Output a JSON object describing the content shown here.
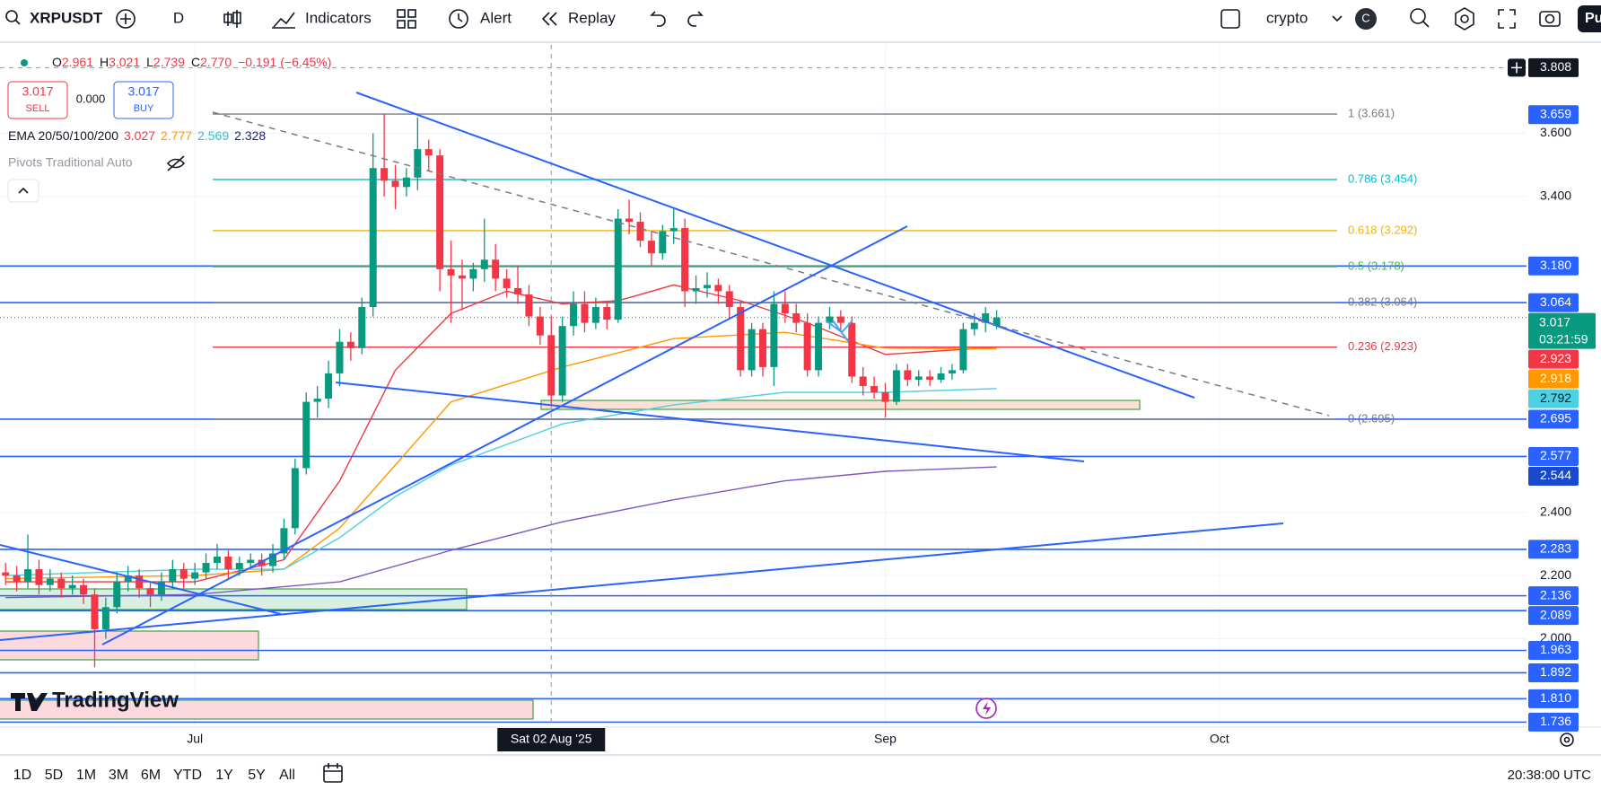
{
  "toolbar": {
    "symbol": "XRPUSDT",
    "interval": "D",
    "items": [
      "Indicators",
      "Alert",
      "Replay"
    ],
    "layout": "crypto",
    "avatar": "C",
    "account": "Pu"
  },
  "legend": {
    "ohlc": [
      {
        "key": "O",
        "value": "2.961"
      },
      {
        "key": "H",
        "value": "3.021"
      },
      {
        "key": "L",
        "value": "2.739"
      },
      {
        "key": "C",
        "value": "2.770"
      }
    ],
    "change": "−0.191 (−6.45%)",
    "sell_price": "3.017",
    "sell": "SELL",
    "spread": "0.000",
    "buy_price": "3.017",
    "buy": "BUY",
    "ema_title": "EMA 20/50/100/200",
    "ema_values": [
      {
        "text": "3.027",
        "color": "#f23645"
      },
      {
        "text": "2.777",
        "color": "#ff9800"
      },
      {
        "text": "2.569",
        "color": "#26c6da"
      },
      {
        "text": "2.328",
        "color": "#1a237e"
      }
    ],
    "pivots": "Pivots Traditional Auto"
  },
  "chart_data": {
    "type": "candlestick",
    "up_color": "#089981",
    "down_color": "#f23645",
    "ohlc": [
      [
        2.21,
        2.24,
        2.17,
        2.2
      ],
      [
        2.2,
        2.23,
        2.15,
        2.18
      ],
      [
        2.18,
        2.33,
        2.16,
        2.22
      ],
      [
        2.22,
        2.25,
        2.14,
        2.17
      ],
      [
        2.17,
        2.22,
        2.15,
        2.19
      ],
      [
        2.19,
        2.21,
        2.13,
        2.16
      ],
      [
        2.16,
        2.2,
        2.14,
        2.17
      ],
      [
        2.17,
        2.19,
        2.11,
        2.14
      ],
      [
        2.14,
        2.16,
        1.91,
        2.03
      ],
      [
        2.03,
        2.13,
        2.0,
        2.1
      ],
      [
        2.1,
        2.21,
        2.08,
        2.18
      ],
      [
        2.18,
        2.23,
        2.15,
        2.2
      ],
      [
        2.2,
        2.22,
        2.13,
        2.16
      ],
      [
        2.16,
        2.18,
        2.1,
        2.14
      ],
      [
        2.14,
        2.21,
        2.12,
        2.18
      ],
      [
        2.18,
        2.25,
        2.16,
        2.22
      ],
      [
        2.22,
        2.24,
        2.16,
        2.19
      ],
      [
        2.19,
        2.24,
        2.17,
        2.21
      ],
      [
        2.21,
        2.27,
        2.19,
        2.24
      ],
      [
        2.24,
        2.3,
        2.22,
        2.26
      ],
      [
        2.26,
        2.28,
        2.19,
        2.22
      ],
      [
        2.22,
        2.26,
        2.2,
        2.24
      ],
      [
        2.24,
        2.27,
        2.22,
        2.25
      ],
      [
        2.25,
        2.27,
        2.2,
        2.23
      ],
      [
        2.23,
        2.3,
        2.21,
        2.27
      ],
      [
        2.27,
        2.38,
        2.25,
        2.35
      ],
      [
        2.35,
        2.57,
        2.33,
        2.54
      ],
      [
        2.54,
        2.78,
        2.52,
        2.75
      ],
      [
        2.75,
        2.8,
        2.7,
        2.76
      ],
      [
        2.76,
        2.88,
        2.73,
        2.84
      ],
      [
        2.84,
        2.98,
        2.8,
        2.94
      ],
      [
        2.94,
        2.97,
        2.88,
        2.92
      ],
      [
        2.92,
        3.08,
        2.9,
        3.05
      ],
      [
        3.05,
        3.6,
        3.02,
        3.49
      ],
      [
        3.49,
        3.66,
        3.4,
        3.45
      ],
      [
        3.45,
        3.5,
        3.36,
        3.43
      ],
      [
        3.43,
        3.49,
        3.4,
        3.46
      ],
      [
        3.46,
        3.65,
        3.42,
        3.55
      ],
      [
        3.55,
        3.58,
        3.48,
        3.53
      ],
      [
        3.53,
        3.55,
        3.1,
        3.17
      ],
      [
        3.17,
        3.26,
        3.0,
        3.15
      ],
      [
        3.15,
        3.2,
        3.04,
        3.14
      ],
      [
        3.14,
        3.19,
        3.1,
        3.17
      ],
      [
        3.17,
        3.33,
        3.13,
        3.2
      ],
      [
        3.2,
        3.25,
        3.1,
        3.14
      ],
      [
        3.14,
        3.17,
        3.08,
        3.11
      ],
      [
        3.11,
        3.18,
        3.06,
        3.09
      ],
      [
        3.09,
        3.12,
        2.99,
        3.02
      ],
      [
        3.02,
        3.05,
        2.93,
        2.96
      ],
      [
        2.961,
        3.021,
        2.739,
        2.77
      ],
      [
        2.77,
        3.02,
        2.75,
        2.99
      ],
      [
        2.99,
        3.1,
        2.96,
        3.06
      ],
      [
        3.06,
        3.1,
        2.97,
        3.0
      ],
      [
        3.0,
        3.08,
        2.98,
        3.05
      ],
      [
        3.05,
        3.07,
        2.98,
        3.01
      ],
      [
        3.01,
        3.36,
        3.0,
        3.33
      ],
      [
        3.33,
        3.39,
        3.28,
        3.32
      ],
      [
        3.32,
        3.35,
        3.24,
        3.26
      ],
      [
        3.26,
        3.29,
        3.18,
        3.22
      ],
      [
        3.22,
        3.31,
        3.2,
        3.29
      ],
      [
        3.29,
        3.36,
        3.25,
        3.3
      ],
      [
        3.3,
        3.33,
        3.05,
        3.1
      ],
      [
        3.1,
        3.15,
        3.06,
        3.11
      ],
      [
        3.11,
        3.16,
        3.08,
        3.12
      ],
      [
        3.12,
        3.14,
        3.06,
        3.1
      ],
      [
        3.1,
        3.12,
        3.01,
        3.05
      ],
      [
        3.05,
        3.07,
        2.83,
        2.85
      ],
      [
        2.85,
        3.0,
        2.83,
        2.98
      ],
      [
        2.98,
        3.0,
        2.83,
        2.86
      ],
      [
        2.86,
        3.1,
        2.8,
        3.06
      ],
      [
        3.06,
        3.1,
        3.0,
        3.03
      ],
      [
        3.03,
        3.06,
        2.97,
        3.0
      ],
      [
        3.0,
        3.03,
        2.83,
        2.85
      ],
      [
        2.85,
        3.02,
        2.83,
        3.0
      ],
      [
        3.0,
        3.05,
        2.98,
        3.02
      ],
      [
        3.02,
        3.04,
        2.97,
        3.0
      ],
      [
        3.0,
        3.02,
        2.81,
        2.83
      ],
      [
        2.83,
        2.86,
        2.77,
        2.8
      ],
      [
        2.8,
        2.83,
        2.76,
        2.78
      ],
      [
        2.78,
        2.81,
        2.7,
        2.75
      ],
      [
        2.75,
        2.87,
        2.74,
        2.85
      ],
      [
        2.85,
        2.87,
        2.8,
        2.82
      ],
      [
        2.82,
        2.85,
        2.8,
        2.83
      ],
      [
        2.83,
        2.85,
        2.8,
        2.82
      ],
      [
        2.82,
        2.86,
        2.81,
        2.84
      ],
      [
        2.84,
        2.87,
        2.82,
        2.85
      ],
      [
        2.85,
        3.0,
        2.84,
        2.98
      ],
      [
        2.98,
        3.03,
        2.96,
        3.0
      ],
      [
        3.0,
        3.05,
        2.97,
        3.03
      ],
      [
        2.99,
        3.04,
        2.98,
        3.017
      ]
    ],
    "xlim": [
      -0.5,
      136.5
    ],
    "xticks": [
      {
        "value": 17,
        "label": "Jul"
      },
      {
        "value": 79,
        "label": "Sep"
      },
      {
        "value": 109,
        "label": "Oct"
      }
    ],
    "ylim": [
      1.72,
      3.88
    ],
    "yticks": [
      {
        "value": 3.6,
        "label": "3.600"
      },
      {
        "value": 3.4,
        "label": "3.400"
      },
      {
        "value": 2.4,
        "label": "2.400"
      },
      {
        "value": 2.2,
        "label": "2.200"
      },
      {
        "value": 2.0,
        "label": "2.000"
      }
    ],
    "grid": true,
    "crosshair": {
      "x": {
        "value": 49,
        "label": "Sat 02 Aug '25"
      },
      "y": {
        "value": 3.808,
        "label": "3.808"
      }
    },
    "last_price": {
      "value": 3.017,
      "label": "3.017",
      "countdown": "03:21:59",
      "color": "#089981"
    },
    "ema": [
      {
        "color": "#f23645",
        "x": [
          0,
          17,
          25,
          30,
          35,
          40,
          45,
          50,
          55,
          60,
          66,
          72,
          79,
          89
        ],
        "values": [
          2.18,
          2.18,
          2.25,
          2.5,
          2.85,
          3.03,
          3.1,
          3.06,
          3.07,
          3.12,
          3.07,
          3.0,
          2.9,
          2.923
        ]
      },
      {
        "color": "#ff9800",
        "x": [
          0,
          17,
          25,
          30,
          35,
          40,
          50,
          60,
          70,
          79,
          89
        ],
        "values": [
          2.19,
          2.2,
          2.22,
          2.35,
          2.55,
          2.75,
          2.86,
          2.95,
          2.97,
          2.92,
          2.918
        ]
      },
      {
        "color": "#4dd0e1",
        "x": [
          0,
          17,
          25,
          30,
          35,
          40,
          50,
          60,
          70,
          79,
          89
        ],
        "values": [
          2.2,
          2.22,
          2.22,
          2.32,
          2.45,
          2.55,
          2.68,
          2.74,
          2.78,
          2.78,
          2.792
        ]
      },
      {
        "color": "#7e57c2",
        "x": [
          0,
          17,
          30,
          40,
          50,
          60,
          70,
          79,
          89
        ],
        "values": [
          2.13,
          2.14,
          2.18,
          2.28,
          2.37,
          2.44,
          2.5,
          2.53,
          2.544
        ]
      }
    ],
    "fib_levels": [
      {
        "label": "1 (3.661)",
        "value": 3.661,
        "color": "#787b86"
      },
      {
        "label": "0.786 (3.454)",
        "value": 3.454,
        "color": "#00bcd4"
      },
      {
        "label": "0.618 (3.292)",
        "value": 3.292,
        "color": "#f5b400"
      },
      {
        "label": "0.5 (3.178)",
        "value": 3.178,
        "color": "#4caf50"
      },
      {
        "label": "0.382 (3.064)",
        "value": 3.064,
        "color": "#787b86"
      },
      {
        "label": "0.236 (2.923)",
        "value": 2.923,
        "color": "#f23645"
      },
      {
        "label": "0 (2.695)",
        "value": 2.695,
        "color": "#787b86"
      }
    ],
    "badges": [
      {
        "value": 3.659,
        "label": "3.659",
        "color": "#2962ff",
        "text_color": "#ffffff",
        "line": false
      },
      {
        "value": 3.18,
        "label": "3.180",
        "color": "#2962ff",
        "text_color": "#ffffff",
        "line": true
      },
      {
        "value": 3.064,
        "label": "3.064",
        "color": "#2962ff",
        "text_color": "#ffffff",
        "line": true
      },
      {
        "value": 2.923,
        "label": "2.923",
        "color": "#f23645",
        "text_color": "#ffffff",
        "line": false
      },
      {
        "value": 2.918,
        "label": "2.918",
        "color": "#ff9800",
        "text_color": "#ffffff",
        "line": false
      },
      {
        "value": 2.792,
        "label": "2.792",
        "color": "#4dd0e1",
        "text_color": "#131722",
        "line": false
      },
      {
        "value": 2.695,
        "label": "2.695",
        "color": "#2962ff",
        "text_color": "#ffffff",
        "line": true
      },
      {
        "value": 2.577,
        "label": "2.577",
        "color": "#2962ff",
        "text_color": "#ffffff",
        "line": true
      },
      {
        "value": 2.544,
        "label": "2.544",
        "color": "#1848cc",
        "text_color": "#ffffff",
        "line": false
      },
      {
        "value": 2.283,
        "label": "2.283",
        "color": "#2962ff",
        "text_color": "#ffffff",
        "line": true
      },
      {
        "value": 2.136,
        "label": "2.136",
        "color": "#2962ff",
        "text_color": "#ffffff",
        "line": true
      },
      {
        "value": 2.089,
        "label": "2.089",
        "color": "#2962ff",
        "text_color": "#ffffff",
        "line": true
      },
      {
        "value": 1.963,
        "label": "1.963",
        "color": "#2962ff",
        "text_color": "#ffffff",
        "line": true
      },
      {
        "value": 1.892,
        "label": "1.892",
        "color": "#2962ff",
        "text_color": "#ffffff",
        "line": true
      },
      {
        "value": 1.81,
        "label": "1.810",
        "color": "#2962ff",
        "text_color": "#ffffff",
        "line": true
      },
      {
        "value": 1.736,
        "label": "1.736",
        "color": "#2962ff",
        "text_color": "#ffffff",
        "line": true
      }
    ]
  },
  "logo": "TradingView",
  "time_ranges": [
    "1D",
    "5D",
    "1M",
    "3M",
    "6M",
    "YTD",
    "1Y",
    "5Y",
    "All"
  ],
  "clock": "20:38:00 UTC"
}
